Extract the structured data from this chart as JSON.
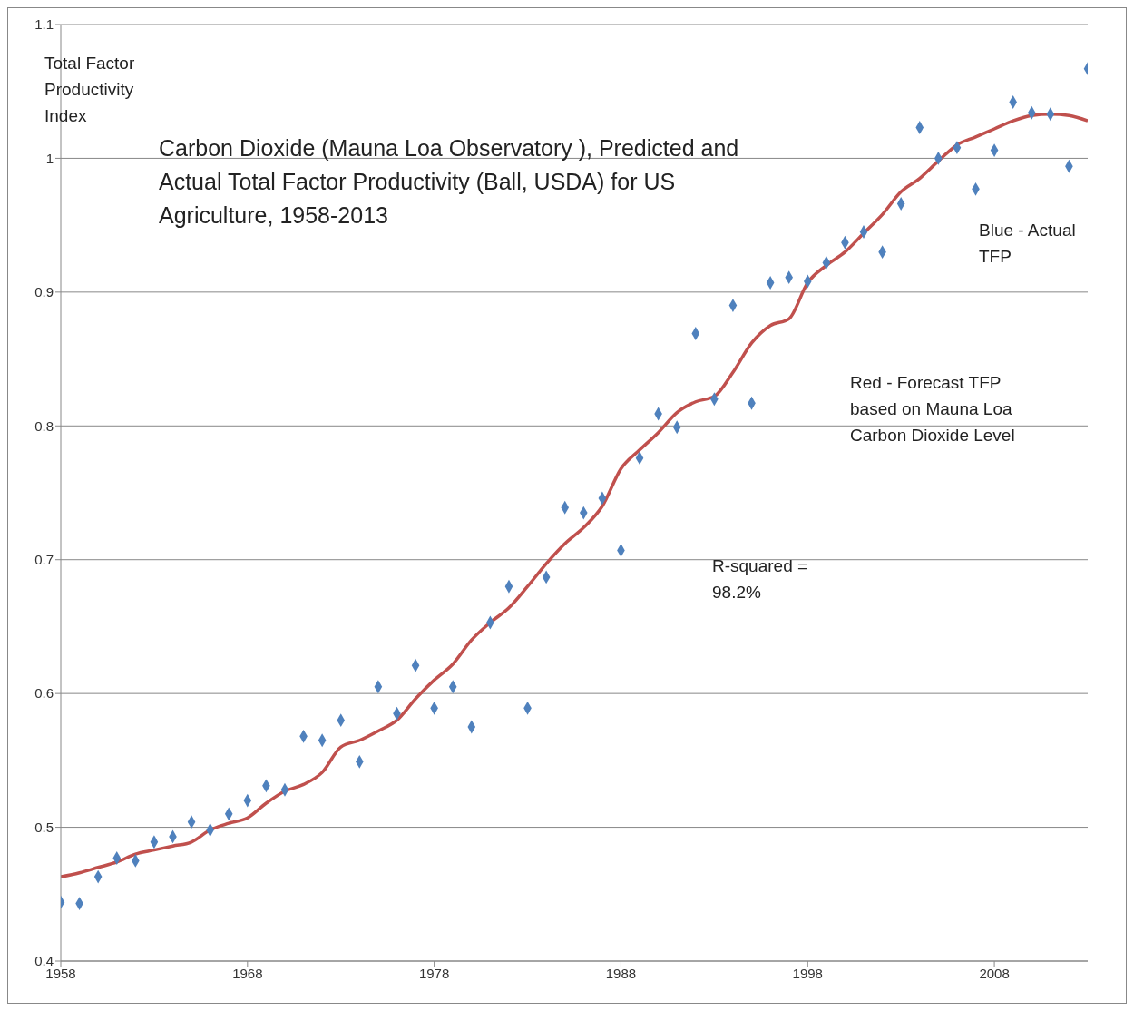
{
  "chart_data": {
    "type": "scatter",
    "title": "Carbon Dioxide (Mauna Loa Observatory ), Predicted and Actual Total Factor Productivity (Ball, USDA) for US Agriculture, 1958-2013",
    "ylabel": "Total Factor Productivity Index",
    "annotations": [
      "Blue - Actual TFP",
      "Red - Forecast TFP based on Mauna Loa Carbon Dioxide Level",
      "R-squared = 98.2%"
    ],
    "x": [
      1958,
      1959,
      1960,
      1961,
      1962,
      1963,
      1964,
      1965,
      1966,
      1967,
      1968,
      1969,
      1970,
      1971,
      1972,
      1973,
      1974,
      1975,
      1976,
      1977,
      1978,
      1979,
      1980,
      1981,
      1982,
      1983,
      1984,
      1985,
      1986,
      1987,
      1988,
      1989,
      1990,
      1991,
      1992,
      1993,
      1994,
      1995,
      1996,
      1997,
      1998,
      1999,
      2000,
      2001,
      2002,
      2003,
      2004,
      2005,
      2006,
      2007,
      2008,
      2009,
      2010,
      2011,
      2012,
      2013
    ],
    "series": [
      {
        "color": "#4f81bd",
        "marker": "diamond",
        "values": [
          0.444,
          0.443,
          0.463,
          0.477,
          0.475,
          0.489,
          0.493,
          0.504,
          0.498,
          0.51,
          0.52,
          0.531,
          0.528,
          0.568,
          0.565,
          0.58,
          0.549,
          0.605,
          0.585,
          0.621,
          0.589,
          0.605,
          0.575,
          0.653,
          0.68,
          0.589,
          0.687,
          0.739,
          0.735,
          0.746,
          0.707,
          0.776,
          0.809,
          0.799,
          0.869,
          0.82,
          0.89,
          0.817,
          0.907,
          0.911,
          0.908,
          0.922,
          0.937,
          0.945,
          0.93,
          0.966,
          1.023,
          1.0,
          1.008,
          0.977,
          1.006,
          1.042,
          1.034,
          1.033,
          0.994,
          1.067
        ]
      },
      {
        "type": "line",
        "color": "#c0504d",
        "marker": "none",
        "line_style": "solid",
        "values": [
          0.463,
          0.466,
          0.47,
          0.474,
          0.48,
          0.483,
          0.486,
          0.489,
          0.498,
          0.503,
          0.507,
          0.518,
          0.527,
          0.532,
          0.541,
          0.56,
          0.565,
          0.572,
          0.58,
          0.596,
          0.61,
          0.622,
          0.64,
          0.653,
          0.664,
          0.68,
          0.697,
          0.712,
          0.724,
          0.74,
          0.768,
          0.782,
          0.795,
          0.81,
          0.818,
          0.822,
          0.84,
          0.862,
          0.875,
          0.88,
          0.907,
          0.92,
          0.93,
          0.944,
          0.958,
          0.975,
          0.985,
          0.998,
          1.01,
          1.016,
          1.022,
          1.028,
          1.032,
          1.033,
          1.032,
          1.028
        ]
      }
    ],
    "xlim": [
      1958,
      2013
    ],
    "xticks": [
      1958,
      1968,
      1978,
      1988,
      1998,
      2008
    ],
    "ylim": [
      0.4,
      1.1
    ],
    "yticks": [
      0.4,
      0.5,
      0.6,
      0.7,
      0.8,
      0.9,
      1,
      1.1
    ],
    "grid": "y"
  }
}
